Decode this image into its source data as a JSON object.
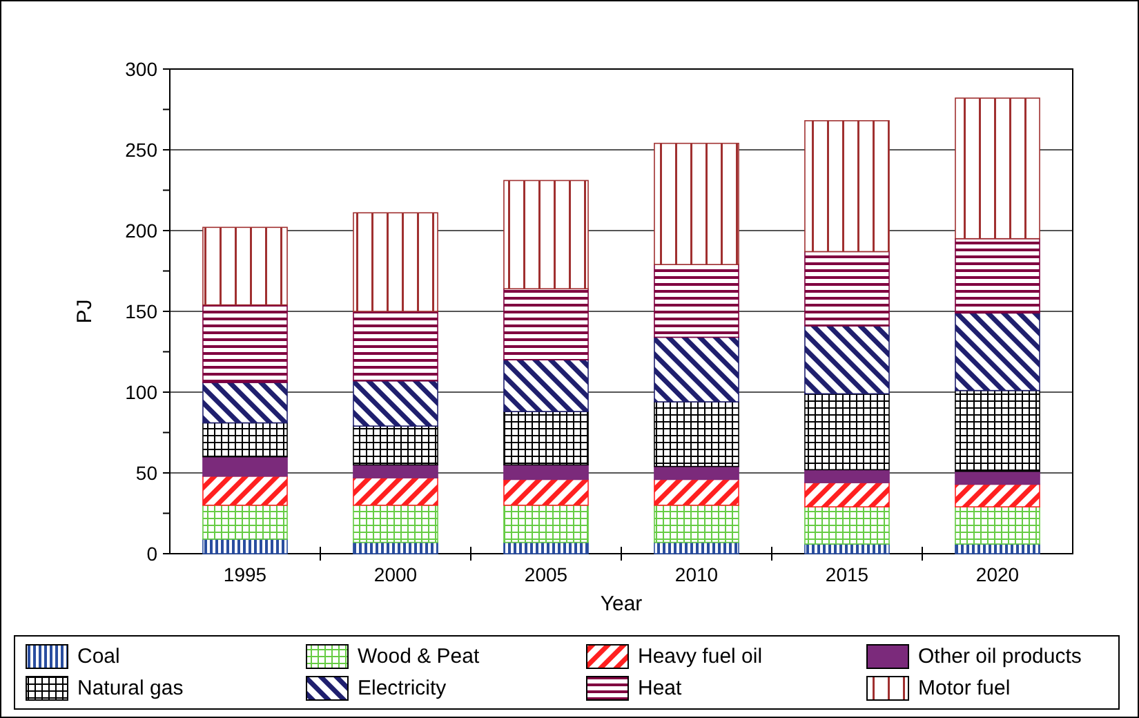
{
  "chart_data": {
    "type": "bar",
    "stacked": true,
    "xlabel": "Year",
    "ylabel": "PJ",
    "categories": [
      "1995",
      "2000",
      "2005",
      "2010",
      "2015",
      "2020"
    ],
    "ylim": [
      0,
      300
    ],
    "yticks": [
      0,
      {
        "value": 25,
        "label": null
      },
      50,
      {
        "value": 75,
        "label": null
      },
      100,
      {
        "value": 125,
        "label": null
      },
      150,
      {
        "value": 175,
        "label": null
      },
      200,
      {
        "value": 225,
        "label": null
      },
      250,
      {
        "value": 275,
        "label": null
      },
      300
    ],
    "grid": "y",
    "legend": "bottom",
    "series": [
      {
        "name": "Coal",
        "color": "#2a4ea0",
        "values": [
          9,
          7,
          7,
          7,
          6,
          6
        ]
      },
      {
        "name": "Wood & Peat",
        "color": "#66cc44",
        "values": [
          21,
          23,
          23,
          23,
          23,
          23
        ]
      },
      {
        "name": "Heavy fuel oil",
        "color": "#ff2020",
        "values": [
          18,
          17,
          16,
          16,
          15,
          14
        ]
      },
      {
        "name": "Other oil products",
        "color": "#7b2a7b",
        "values": [
          12,
          8,
          9,
          8,
          8,
          8
        ]
      },
      {
        "name": "Natural gas",
        "color": "#000000",
        "values": [
          21,
          24,
          33,
          40,
          47,
          50
        ]
      },
      {
        "name": "Electricity",
        "color": "#1f1f6e",
        "values": [
          25,
          28,
          32,
          40,
          42,
          48
        ]
      },
      {
        "name": "Heat",
        "color": "#800040",
        "values": [
          48,
          43,
          44,
          45,
          46,
          46
        ]
      },
      {
        "name": "Motor fuel",
        "color": "#a03030",
        "values": [
          48,
          61,
          67,
          75,
          81,
          87
        ]
      }
    ]
  }
}
